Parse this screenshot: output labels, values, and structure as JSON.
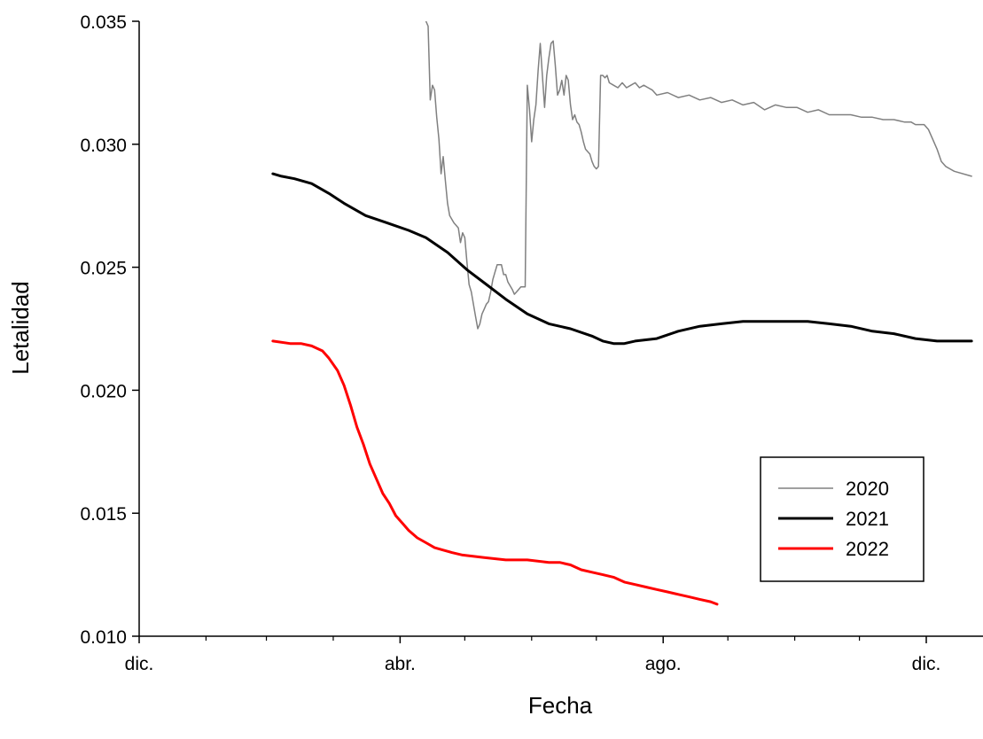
{
  "chart_data": {
    "type": "line",
    "title": "",
    "xlabel": "Fecha",
    "ylabel": "Letalidad",
    "ylim": [
      0.01,
      0.035
    ],
    "xlim_day": [
      0,
      320
    ],
    "x_tick_labels": [
      {
        "label": "dic.",
        "day": 0
      },
      {
        "label": "abr.",
        "day": 121
      },
      {
        "label": "ago.",
        "day": 243
      },
      {
        "label": "dic.",
        "day": 365
      }
    ],
    "minor_tick_days": [
      31,
      59,
      90,
      151,
      182,
      212,
      273,
      304,
      334
    ],
    "y_ticks": [
      "0.010",
      "0.015",
      "0.020",
      "0.025",
      "0.030",
      "0.035"
    ],
    "grid": false,
    "legend_position": "bottom-right",
    "series": [
      {
        "name": "2020",
        "color": "#808080",
        "width": 1.5,
        "points": [
          [
            133,
            0.035
          ],
          [
            134,
            0.0348
          ],
          [
            135,
            0.0318
          ],
          [
            136,
            0.0324
          ],
          [
            137,
            0.0322
          ],
          [
            138,
            0.0311
          ],
          [
            139,
            0.0302
          ],
          [
            140,
            0.0288
          ],
          [
            141,
            0.0295
          ],
          [
            142,
            0.0285
          ],
          [
            143,
            0.0276
          ],
          [
            144,
            0.0271
          ],
          [
            146,
            0.0268
          ],
          [
            148,
            0.0266
          ],
          [
            149,
            0.026
          ],
          [
            150,
            0.0264
          ],
          [
            151,
            0.0262
          ],
          [
            152,
            0.0252
          ],
          [
            153,
            0.0243
          ],
          [
            154,
            0.024
          ],
          [
            155,
            0.0235
          ],
          [
            156,
            0.023
          ],
          [
            157,
            0.0225
          ],
          [
            158,
            0.0227
          ],
          [
            159,
            0.0231
          ],
          [
            160,
            0.0233
          ],
          [
            161,
            0.0235
          ],
          [
            162,
            0.0236
          ],
          [
            163,
            0.024
          ],
          [
            164,
            0.0245
          ],
          [
            165,
            0.0248
          ],
          [
            166,
            0.0251
          ],
          [
            168,
            0.0251
          ],
          [
            169,
            0.0247
          ],
          [
            170,
            0.0247
          ],
          [
            171,
            0.0244
          ],
          [
            173,
            0.0241
          ],
          [
            174,
            0.0239
          ],
          [
            175,
            0.024
          ],
          [
            176,
            0.0241
          ],
          [
            177,
            0.0242
          ],
          [
            178,
            0.0242
          ],
          [
            179,
            0.0242
          ],
          [
            180,
            0.0324
          ],
          [
            181,
            0.0314
          ],
          [
            182,
            0.0301
          ],
          [
            183,
            0.031
          ],
          [
            184,
            0.0316
          ],
          [
            185,
            0.033
          ],
          [
            186,
            0.0341
          ],
          [
            187,
            0.0328
          ],
          [
            188,
            0.0315
          ],
          [
            189,
            0.0328
          ],
          [
            190,
            0.0335
          ],
          [
            191,
            0.0341
          ],
          [
            192,
            0.0342
          ],
          [
            193,
            0.0332
          ],
          [
            194,
            0.032
          ],
          [
            195,
            0.0322
          ],
          [
            196,
            0.0326
          ],
          [
            197,
            0.032
          ],
          [
            198,
            0.0328
          ],
          [
            199,
            0.0326
          ],
          [
            200,
            0.0316
          ],
          [
            201,
            0.031
          ],
          [
            202,
            0.0312
          ],
          [
            203,
            0.0309
          ],
          [
            204,
            0.0308
          ],
          [
            205,
            0.0305
          ],
          [
            206,
            0.0301
          ],
          [
            207,
            0.0298
          ],
          [
            209,
            0.0296
          ],
          [
            210,
            0.0293
          ],
          [
            211,
            0.0291
          ],
          [
            212,
            0.029
          ],
          [
            213,
            0.0291
          ],
          [
            214,
            0.0328
          ],
          [
            215,
            0.0328
          ],
          [
            216,
            0.0327
          ],
          [
            217,
            0.0328
          ],
          [
            218,
            0.0325
          ],
          [
            220,
            0.0324
          ],
          [
            222,
            0.0323
          ],
          [
            224,
            0.0325
          ],
          [
            226,
            0.0323
          ],
          [
            228,
            0.0324
          ],
          [
            230,
            0.0325
          ],
          [
            232,
            0.0323
          ],
          [
            234,
            0.0324
          ],
          [
            236,
            0.0323
          ],
          [
            238,
            0.0322
          ],
          [
            240,
            0.032
          ],
          [
            245,
            0.0321
          ],
          [
            250,
            0.0319
          ],
          [
            255,
            0.032
          ],
          [
            260,
            0.0318
          ],
          [
            265,
            0.0319
          ],
          [
            270,
            0.0317
          ],
          [
            275,
            0.0318
          ],
          [
            280,
            0.0316
          ],
          [
            285,
            0.0317
          ],
          [
            290,
            0.0314
          ],
          [
            295,
            0.0316
          ],
          [
            300,
            0.0315
          ],
          [
            305,
            0.0315
          ],
          [
            310,
            0.0313
          ],
          [
            315,
            0.0314
          ],
          [
            320,
            0.0312
          ],
          [
            325,
            0.0312
          ],
          [
            330,
            0.0312
          ],
          [
            335,
            0.0311
          ],
          [
            340,
            0.0311
          ],
          [
            345,
            0.031
          ],
          [
            350,
            0.031
          ],
          [
            355,
            0.0309
          ],
          [
            358,
            0.0309
          ],
          [
            360,
            0.0308
          ],
          [
            362,
            0.0308
          ],
          [
            364,
            0.0308
          ],
          [
            366,
            0.0306
          ],
          [
            368,
            0.0302
          ],
          [
            370,
            0.0298
          ],
          [
            372,
            0.0293
          ],
          [
            374,
            0.0291
          ],
          [
            376,
            0.029
          ],
          [
            378,
            0.0289
          ],
          [
            386,
            0.0287
          ]
        ]
      },
      {
        "name": "2021",
        "color": "#000000",
        "width": 3,
        "points": [
          [
            62,
            0.0288
          ],
          [
            66,
            0.0287
          ],
          [
            72,
            0.0286
          ],
          [
            80,
            0.0284
          ],
          [
            88,
            0.028
          ],
          [
            95,
            0.0276
          ],
          [
            105,
            0.0271
          ],
          [
            115,
            0.0268
          ],
          [
            125,
            0.0265
          ],
          [
            133,
            0.0262
          ],
          [
            143,
            0.0256
          ],
          [
            152,
            0.0249
          ],
          [
            161,
            0.0243
          ],
          [
            170,
            0.0237
          ],
          [
            180,
            0.0231
          ],
          [
            190,
            0.0227
          ],
          [
            200,
            0.0225
          ],
          [
            210,
            0.0222
          ],
          [
            215,
            0.022
          ],
          [
            220,
            0.0219
          ],
          [
            225,
            0.0219
          ],
          [
            230,
            0.022
          ],
          [
            240,
            0.0221
          ],
          [
            250,
            0.0224
          ],
          [
            260,
            0.0226
          ],
          [
            270,
            0.0227
          ],
          [
            280,
            0.0228
          ],
          [
            290,
            0.0228
          ],
          [
            300,
            0.0228
          ],
          [
            310,
            0.0228
          ],
          [
            320,
            0.0227
          ],
          [
            330,
            0.0226
          ],
          [
            340,
            0.0224
          ],
          [
            350,
            0.0223
          ],
          [
            360,
            0.0221
          ],
          [
            370,
            0.022
          ],
          [
            380,
            0.022
          ],
          [
            386,
            0.022
          ]
        ]
      },
      {
        "name": "2022",
        "color": "#ff0000",
        "width": 3,
        "points": [
          [
            62,
            0.022
          ],
          [
            70,
            0.0219
          ],
          [
            75,
            0.0219
          ],
          [
            80,
            0.0218
          ],
          [
            85,
            0.0216
          ],
          [
            88,
            0.0213
          ],
          [
            92,
            0.0208
          ],
          [
            95,
            0.0202
          ],
          [
            98,
            0.0194
          ],
          [
            101,
            0.0185
          ],
          [
            104,
            0.0178
          ],
          [
            107,
            0.017
          ],
          [
            110,
            0.0164
          ],
          [
            113,
            0.0158
          ],
          [
            116,
            0.0154
          ],
          [
            119,
            0.0149
          ],
          [
            122,
            0.0146
          ],
          [
            125,
            0.0143
          ],
          [
            129,
            0.014
          ],
          [
            133,
            0.0138
          ],
          [
            137,
            0.0136
          ],
          [
            141,
            0.0135
          ],
          [
            145,
            0.0134
          ],
          [
            150,
            0.0133
          ],
          [
            160,
            0.0132
          ],
          [
            170,
            0.0131
          ],
          [
            180,
            0.0131
          ],
          [
            190,
            0.013
          ],
          [
            195,
            0.013
          ],
          [
            200,
            0.0129
          ],
          [
            205,
            0.0127
          ],
          [
            210,
            0.0126
          ],
          [
            215,
            0.0125
          ],
          [
            220,
            0.0124
          ],
          [
            225,
            0.0122
          ],
          [
            230,
            0.0121
          ],
          [
            235,
            0.012
          ],
          [
            240,
            0.0119
          ],
          [
            245,
            0.0118
          ],
          [
            250,
            0.0117
          ],
          [
            255,
            0.0116
          ],
          [
            260,
            0.0115
          ],
          [
            265,
            0.0114
          ],
          [
            268,
            0.0113
          ]
        ]
      }
    ]
  }
}
